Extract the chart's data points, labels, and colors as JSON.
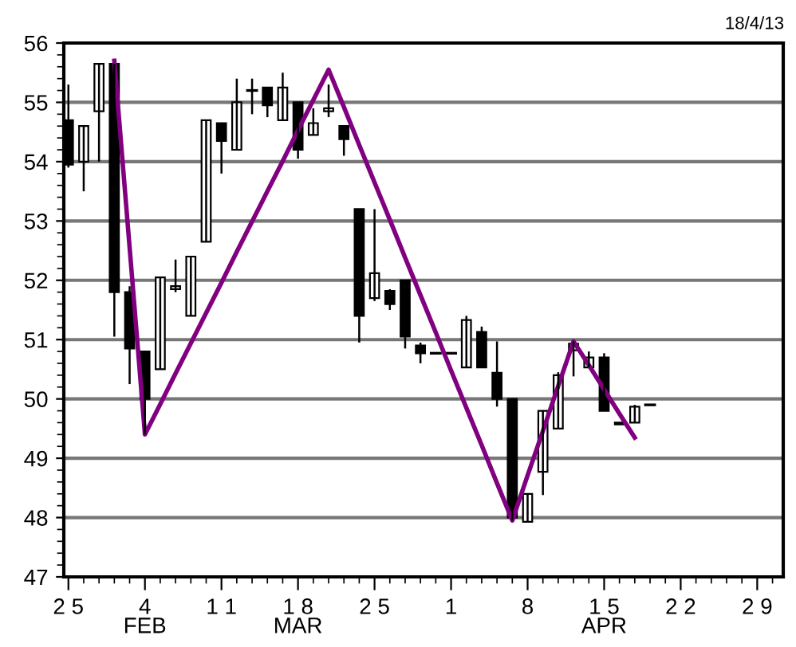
{
  "chart_data": {
    "type": "candlestick",
    "categories": [
      "2 5",
      null,
      null,
      null,
      null,
      "4\nFEB",
      null,
      null,
      null,
      null,
      "1 1",
      null,
      null,
      null,
      null,
      "1 8\nMAR",
      null,
      null,
      null,
      null,
      "2 5",
      null,
      null,
      null,
      null,
      "1",
      null,
      null,
      null,
      null,
      "8",
      null,
      null,
      null,
      null,
      "1 5\nAPR",
      null,
      null,
      null,
      null,
      "2 2",
      null,
      null,
      null,
      null,
      "2 9",
      null
    ],
    "ohlc": [
      [
        54.7,
        55.3,
        53.9,
        53.95
      ],
      [
        54.0,
        54.6,
        53.5,
        54.6
      ],
      [
        54.85,
        55.65,
        54.0,
        55.65
      ],
      [
        55.65,
        55.65,
        51.05,
        51.8
      ],
      [
        51.8,
        51.9,
        50.25,
        50.85
      ],
      [
        50.8,
        50.8,
        49.4,
        50.0
      ],
      [
        50.5,
        52.05,
        50.5,
        52.05
      ],
      [
        51.85,
        52.35,
        51.8,
        51.9
      ],
      [
        51.4,
        52.4,
        51.4,
        52.4
      ],
      [
        52.65,
        54.7,
        52.65,
        54.7
      ],
      [
        54.65,
        54.65,
        53.8,
        54.35
      ],
      [
        54.2,
        55.4,
        54.2,
        55.0
      ],
      [
        55.2,
        55.4,
        54.8,
        55.2
      ],
      [
        55.25,
        55.25,
        54.75,
        54.95
      ],
      [
        54.7,
        55.5,
        54.7,
        55.25
      ],
      [
        55.0,
        55.0,
        54.05,
        54.2
      ],
      [
        54.45,
        54.9,
        54.45,
        54.65
      ],
      [
        54.85,
        55.3,
        54.75,
        54.9
      ],
      [
        54.6,
        54.6,
        54.1,
        54.38
      ],
      [
        53.2,
        53.2,
        50.95,
        51.4
      ],
      [
        51.7,
        53.2,
        51.65,
        52.12
      ],
      [
        51.82,
        51.85,
        51.5,
        51.6
      ],
      [
        52.0,
        52.0,
        50.85,
        51.05
      ],
      [
        50.9,
        50.95,
        50.6,
        50.77
      ],
      [
        50.77,
        50.77,
        50.77,
        50.77
      ],
      [
        50.77,
        50.77,
        50.77,
        50.77
      ],
      [
        50.53,
        51.4,
        50.53,
        51.33
      ],
      [
        51.13,
        51.22,
        50.53,
        50.53
      ],
      [
        50.44,
        50.97,
        49.87,
        50.0
      ],
      [
        50.0,
        50.0,
        47.95,
        48.0
      ],
      [
        47.93,
        48.4,
        47.93,
        48.4
      ],
      [
        48.77,
        49.8,
        48.38,
        49.8
      ],
      [
        49.5,
        50.45,
        49.5,
        50.4
      ],
      [
        50.82,
        50.97,
        50.38,
        50.93
      ],
      [
        50.53,
        50.8,
        50.53,
        50.7
      ],
      [
        50.7,
        50.77,
        49.8,
        49.8
      ],
      [
        49.6,
        49.6,
        49.57,
        49.57
      ],
      [
        49.6,
        49.9,
        49.6,
        49.87
      ],
      [
        49.9,
        49.9,
        49.9,
        49.9
      ],
      null,
      null,
      null,
      null,
      null,
      null,
      null,
      null
    ],
    "series": [
      {
        "type": "line",
        "color": "#800080",
        "values": [
          null,
          null,
          null,
          55.7,
          52.55,
          49.4,
          49.91,
          50.43,
          50.94,
          51.45,
          51.96,
          52.48,
          52.99,
          53.5,
          54.01,
          54.53,
          55.04,
          55.55,
          54.92,
          54.28,
          53.65,
          53.02,
          52.38,
          51.75,
          51.12,
          50.48,
          49.85,
          49.22,
          48.58,
          47.95,
          48.71,
          49.46,
          50.22,
          50.97,
          50.57,
          50.16,
          49.75,
          49.35,
          null,
          null,
          null,
          null,
          null,
          null,
          null,
          null,
          null
        ]
      }
    ],
    "ylim": [
      47,
      56
    ],
    "yticks": [
      47,
      48,
      49,
      50,
      51,
      52,
      53,
      54,
      55,
      56
    ],
    "grid": "y",
    "annotations": [
      "18/4/13"
    ]
  }
}
